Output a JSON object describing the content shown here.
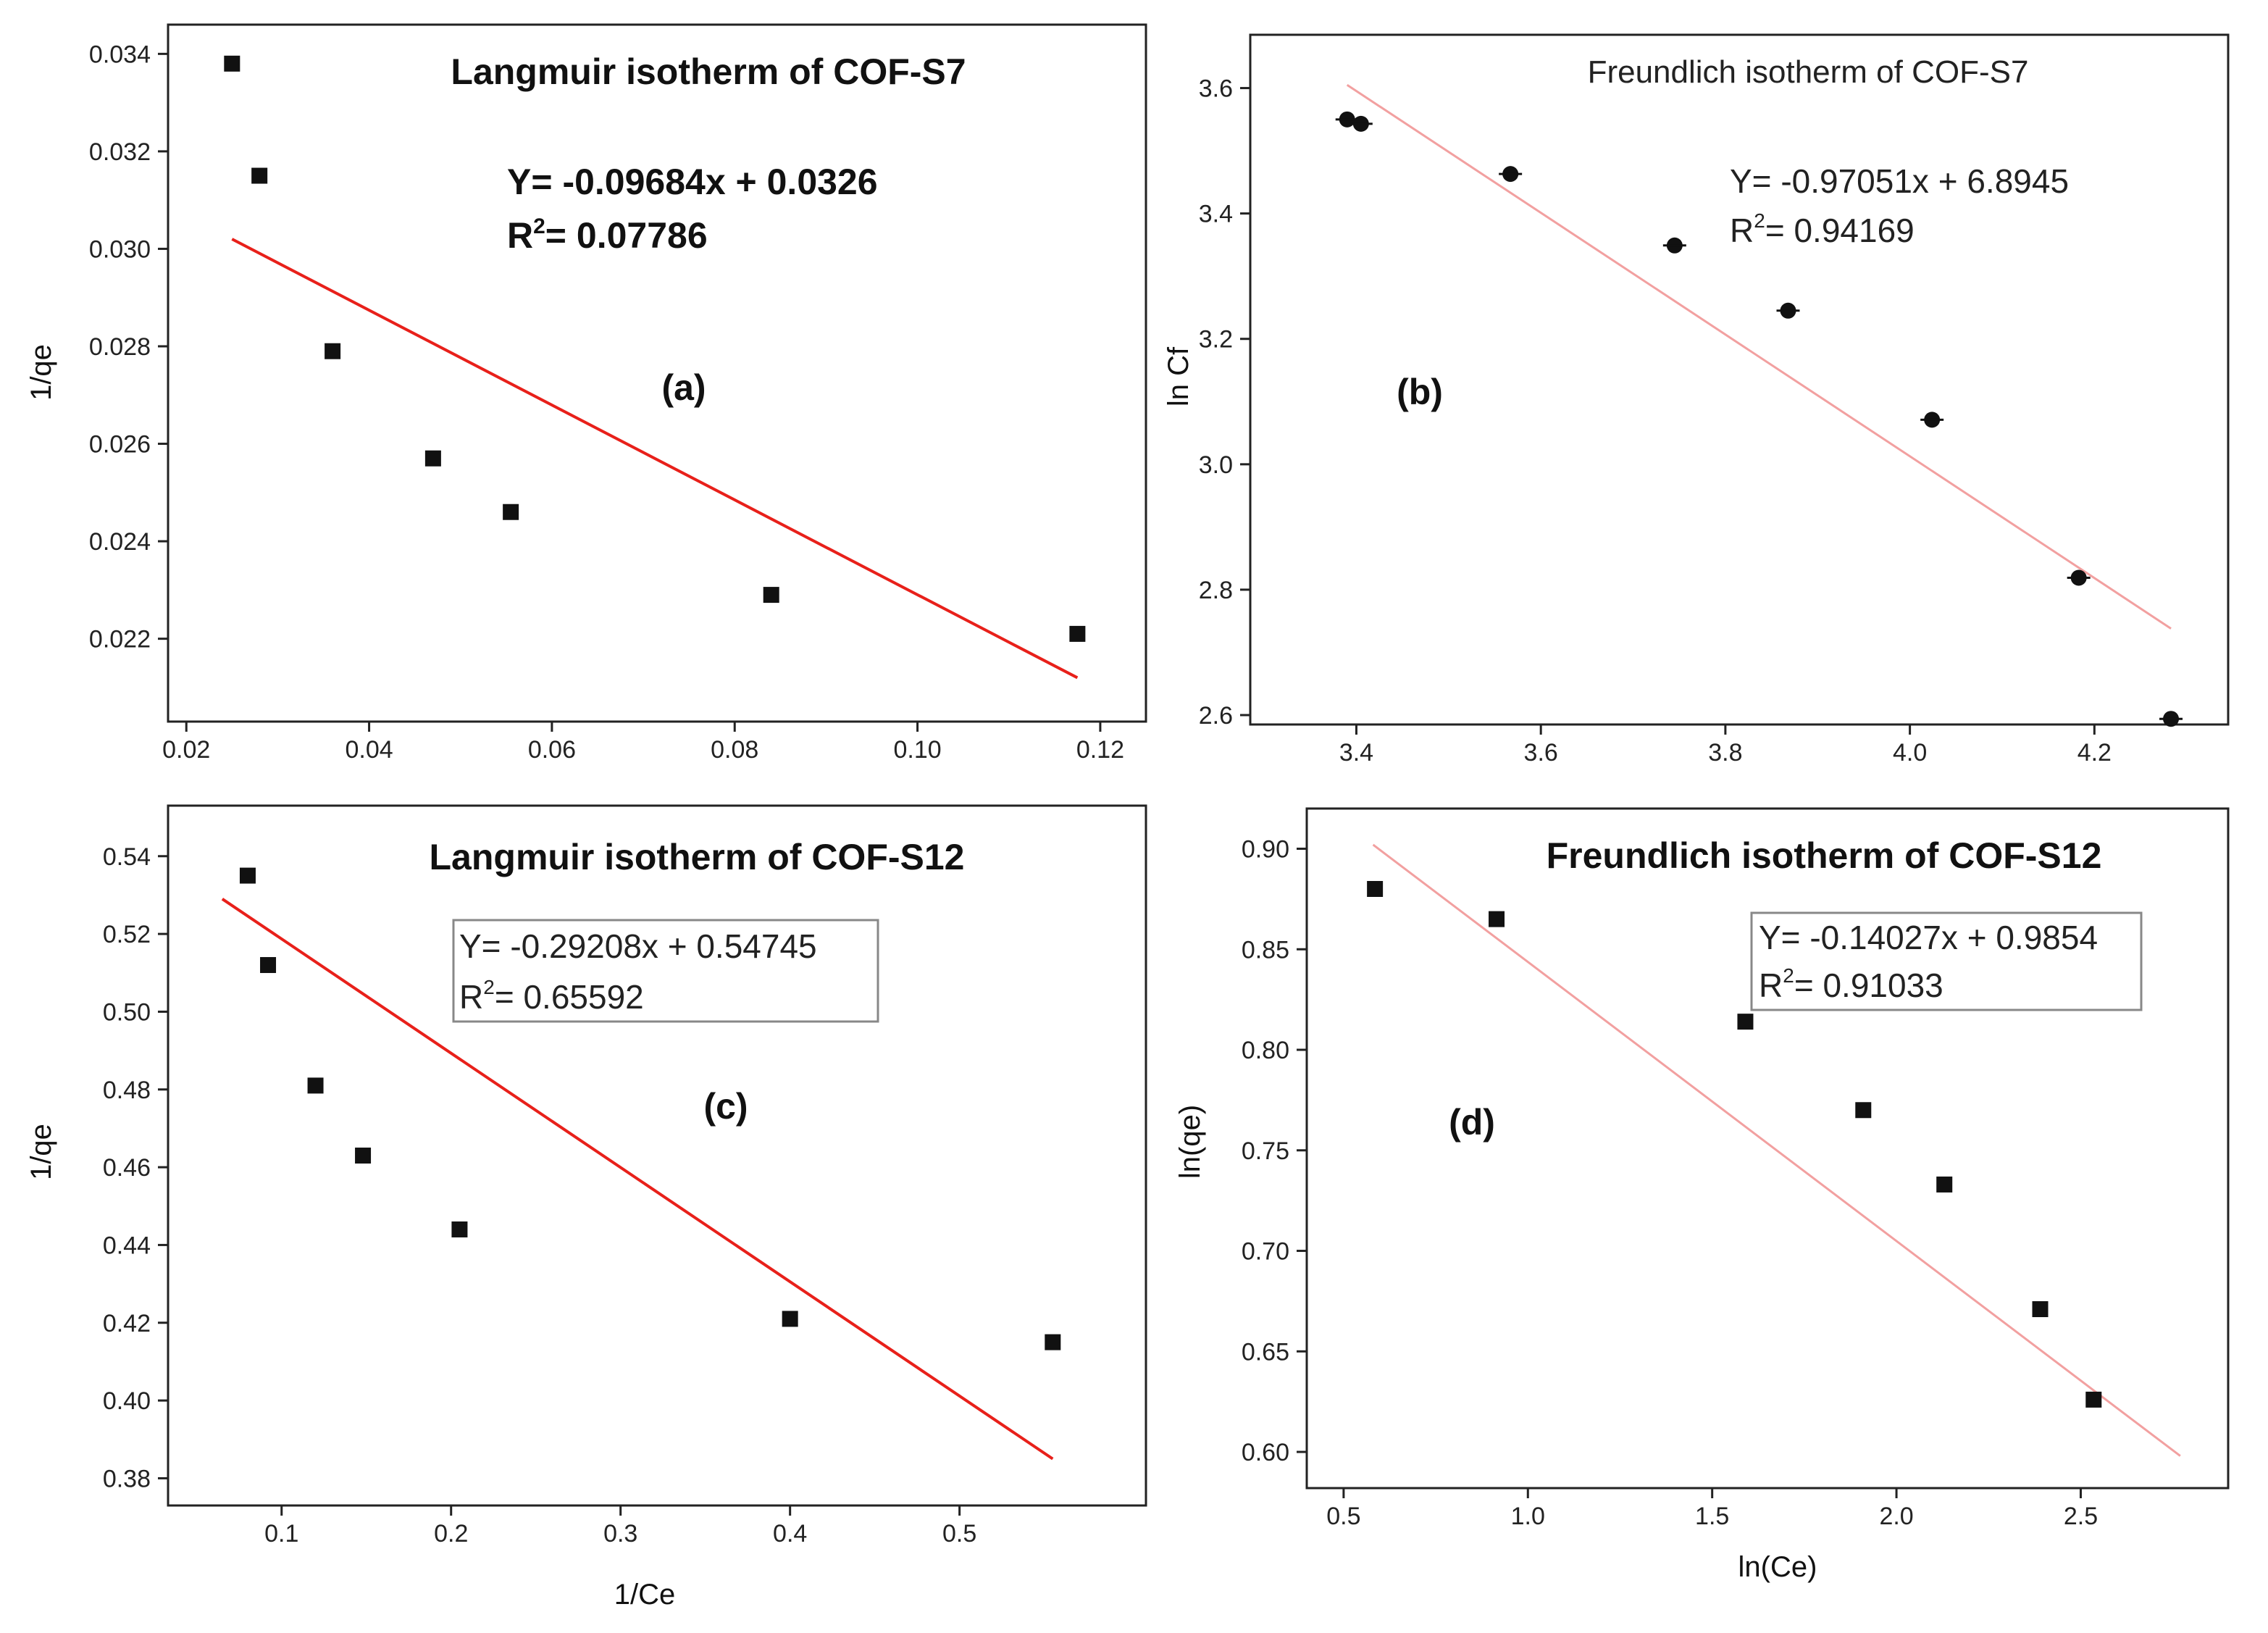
{
  "chart_data": [
    {
      "type": "scatter",
      "panel_label": "(a)",
      "title": "Langmuir isotherm of COF-S7",
      "xlabel": "",
      "ylabel": "1/qe",
      "xlim": [
        0.018,
        0.125
      ],
      "ylim": [
        0.0203,
        0.0346
      ],
      "xticks": [
        0.02,
        0.04,
        0.06,
        0.08,
        0.1,
        0.12
      ],
      "xtick_labels": [
        "0.02",
        "0.04",
        "0.06",
        "0.08",
        "0.10",
        "0.12"
      ],
      "yticks": [
        0.022,
        0.024,
        0.026,
        0.028,
        0.03,
        0.032,
        0.034
      ],
      "ytick_labels": [
        "0.022",
        "0.024",
        "0.026",
        "0.028",
        "0.030",
        "0.032",
        "0.034"
      ],
      "marker": "square",
      "x": [
        0.025,
        0.028,
        0.036,
        0.047,
        0.0555,
        0.084,
        0.1175
      ],
      "y": [
        0.0338,
        0.0315,
        0.0279,
        0.0257,
        0.0246,
        0.0229,
        0.0221
      ],
      "fit": {
        "x": [
          0.025,
          0.1175
        ],
        "y": [
          0.0302,
          0.0212
        ],
        "color": "#e8201a"
      },
      "equation": "Y= -0.09684x + 0.0326",
      "r2_prefix": "R",
      "r2_sup": "2",
      "r2_value": "= 0.07786",
      "equation_box": false,
      "style": "bold"
    },
    {
      "type": "scatter",
      "panel_label": "(b)",
      "title": "Freundlich isotherm of COF-S7",
      "xlabel": "",
      "ylabel": "ln Cf",
      "xlim": [
        3.285,
        4.345
      ],
      "ylim": [
        2.585,
        3.685
      ],
      "xticks": [
        3.4,
        3.6,
        3.8,
        4.0,
        4.2
      ],
      "xtick_labels": [
        "3.4",
        "3.6",
        "3.8",
        "4.0",
        "4.2"
      ],
      "yticks": [
        2.6,
        2.8,
        3.0,
        3.2,
        3.4,
        3.6
      ],
      "ytick_labels": [
        "2.6",
        "2.8",
        "3.0",
        "3.2",
        "3.4",
        "3.6"
      ],
      "marker": "circle",
      "x": [
        3.39,
        3.405,
        3.567,
        3.745,
        3.868,
        4.024,
        4.183,
        4.283
      ],
      "y": [
        3.55,
        3.543,
        3.463,
        3.349,
        3.245,
        3.071,
        2.819,
        2.594
      ],
      "fit": {
        "x": [
          3.39,
          4.283
        ],
        "y": [
          3.605,
          2.738
        ],
        "color": "#f2a0a0"
      },
      "equation": "Y= -0.97051x + 6.8945",
      "r2_prefix": "R",
      "r2_sup": "2",
      "r2_value": "= 0.94169",
      "equation_box": false,
      "style": "regular"
    },
    {
      "type": "scatter",
      "panel_label": "(c)",
      "title": "Langmuir isotherm of COF-S12",
      "xlabel": "1/Ce",
      "ylabel": "1/qe",
      "xlim": [
        0.033,
        0.61
      ],
      "ylim": [
        0.373,
        0.553
      ],
      "xticks": [
        0.1,
        0.2,
        0.3,
        0.4,
        0.5
      ],
      "xtick_labels": [
        "0.1",
        "0.2",
        "0.3",
        "0.4",
        "0.5"
      ],
      "yticks": [
        0.38,
        0.4,
        0.42,
        0.44,
        0.46,
        0.48,
        0.5,
        0.52,
        0.54
      ],
      "ytick_labels": [
        "0.38",
        "0.40",
        "0.42",
        "0.44",
        "0.46",
        "0.48",
        "0.50",
        "0.52",
        "0.54"
      ],
      "marker": "square",
      "x": [
        0.08,
        0.092,
        0.12,
        0.148,
        0.205,
        0.4,
        0.555
      ],
      "y": [
        0.535,
        0.512,
        0.481,
        0.463,
        0.444,
        0.421,
        0.415
      ],
      "fit": {
        "x": [
          0.065,
          0.555
        ],
        "y": [
          0.529,
          0.385
        ],
        "color": "#e8201a"
      },
      "equation": "Y= -0.29208x + 0.54745",
      "r2_prefix": "R",
      "r2_sup": "2",
      "r2_value": "= 0.65592",
      "equation_box": true,
      "style": "regular"
    },
    {
      "type": "scatter",
      "panel_label": "(d)",
      "title": "Freundlich isotherm of COF-S12",
      "xlabel": "ln(Ce)",
      "ylabel": "ln(qe)",
      "xlim": [
        0.4,
        2.9
      ],
      "ylim": [
        0.582,
        0.92
      ],
      "xticks": [
        0.5,
        1.0,
        1.5,
        2.0,
        2.5
      ],
      "xtick_labels": [
        "0.5",
        "1.0",
        "1.5",
        "2.0",
        "2.5"
      ],
      "yticks": [
        0.6,
        0.65,
        0.7,
        0.75,
        0.8,
        0.85,
        0.9
      ],
      "ytick_labels": [
        "0.60",
        "0.65",
        "0.70",
        "0.75",
        "0.80",
        "0.85",
        "0.90"
      ],
      "marker": "square",
      "x": [
        0.585,
        0.915,
        1.59,
        1.91,
        2.13,
        2.39,
        2.535
      ],
      "y": [
        0.88,
        0.865,
        0.814,
        0.77,
        0.733,
        0.671,
        0.626
      ],
      "fit": {
        "x": [
          0.58,
          2.77
        ],
        "y": [
          0.902,
          0.598
        ],
        "color": "#f2a0a0"
      },
      "equation": "Y= -0.14027x + 0.9854",
      "r2_prefix": "R",
      "r2_sup": "2",
      "r2_value": "= 0.91033",
      "equation_box": true,
      "style": "bold-title"
    }
  ]
}
